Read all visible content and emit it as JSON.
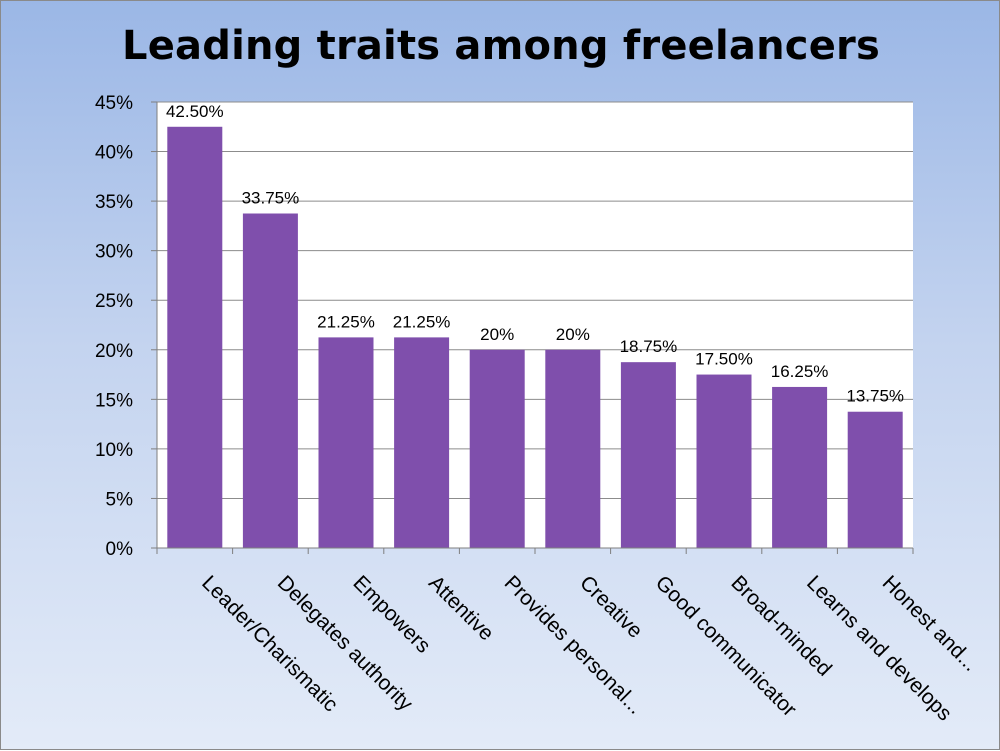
{
  "chart_data": {
    "type": "bar",
    "title": "Leading traits among freelancers",
    "xlabel": "",
    "ylabel": "",
    "categories": [
      "Leader/Charismatic",
      "Delegates authority",
      "Empowers",
      "Attentive",
      "Provides personal...",
      "Creative",
      "Good communicator",
      "Broad-minded",
      "Learns and develops",
      "Honest and..."
    ],
    "values": [
      42.5,
      33.75,
      21.25,
      21.25,
      20,
      20,
      18.75,
      17.5,
      16.25,
      13.75
    ],
    "data_labels": [
      "42.50%",
      "33.75%",
      "21.25%",
      "21.25%",
      "20%",
      "20%",
      "18.75%",
      "17.50%",
      "16.25%",
      "13.75%"
    ],
    "ylim": [
      0,
      45
    ],
    "y_ticks": [
      "0%",
      "5%",
      "10%",
      "15%",
      "20%",
      "25%",
      "30%",
      "35%",
      "40%",
      "45%"
    ],
    "grid": true,
    "legend": "none",
    "colors": {
      "bar": "#7f4fac",
      "grid": "#8c8c8c",
      "plot_background": "#ffffff"
    }
  }
}
